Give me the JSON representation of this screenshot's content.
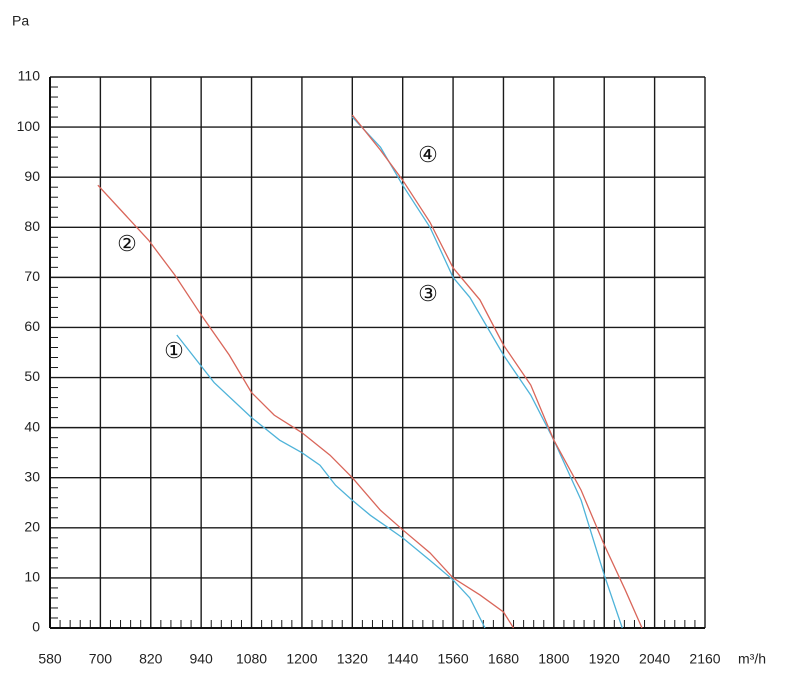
{
  "chart_data": {
    "type": "line",
    "y_label": "Pa",
    "x_label": "m³/h",
    "xlim": [
      580,
      2160
    ],
    "xticks": [
      580,
      700,
      820,
      940,
      1080,
      1200,
      1320,
      1440,
      1560,
      1680,
      1800,
      1920,
      2040,
      2160
    ],
    "ylim": [
      0,
      110
    ],
    "yticks": [
      0,
      10,
      20,
      30,
      40,
      50,
      60,
      70,
      80,
      90,
      100,
      110
    ],
    "grid": true,
    "series": [
      {
        "name": "①",
        "color": "#4fb3d9",
        "x": [
          882,
          976,
          1080,
          1147,
          1200,
          1243,
          1280,
          1320,
          1363,
          1440,
          1505,
          1560,
          1600,
          1636
        ],
        "values": [
          58.5,
          49,
          42,
          37.5,
          35,
          32.5,
          28.5,
          25.5,
          22.5,
          18,
          13.5,
          9.6,
          6,
          0
        ]
      },
      {
        "name": "②",
        "color": "#d9665a",
        "x": [
          694,
          760,
          815,
          877,
          940,
          1018,
          1080,
          1134,
          1200,
          1267,
          1320,
          1387,
          1440,
          1505,
          1560,
          1624,
          1680,
          1704
        ],
        "values": [
          88.4,
          82.4,
          77.4,
          70.5,
          62.5,
          54.5,
          47,
          42.5,
          39,
          34.5,
          30,
          23.5,
          19.6,
          15,
          10,
          6.6,
          3.2,
          0
        ]
      },
      {
        "name": "③",
        "color": "#4fb3d9",
        "x": [
          1320,
          1387,
          1440,
          1505,
          1560,
          1600,
          1680,
          1745,
          1800,
          1865,
          1920,
          1963
        ],
        "values": [
          102,
          96,
          88.4,
          80,
          70,
          66,
          54.5,
          46.5,
          37.5,
          25.5,
          10.6,
          0
        ]
      },
      {
        "name": "④",
        "color": "#d9665a",
        "x": [
          1320,
          1387,
          1440,
          1505,
          1560,
          1624,
          1680,
          1745,
          1800,
          1865,
          1920,
          1970,
          2010
        ],
        "values": [
          102.4,
          95.4,
          89.4,
          81,
          71.9,
          65.5,
          56.5,
          48.5,
          37.5,
          27.5,
          16.6,
          7.6,
          0
        ]
      }
    ]
  }
}
